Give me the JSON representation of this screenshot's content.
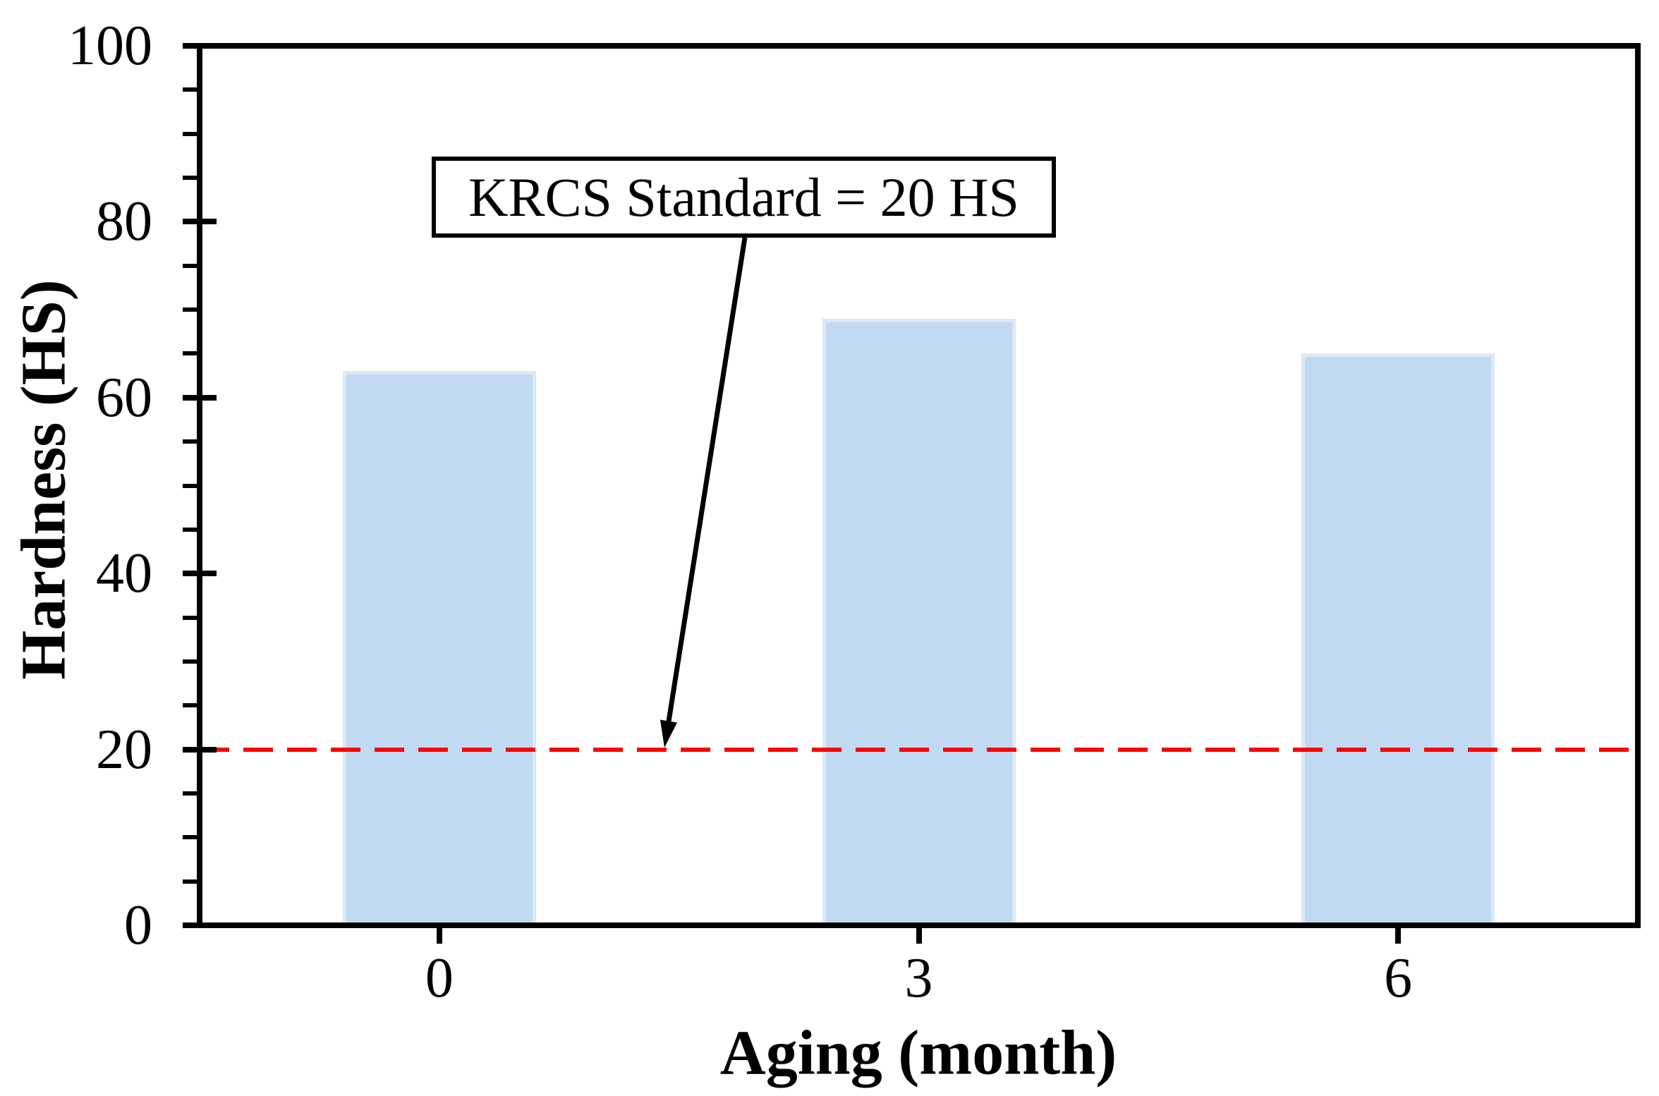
{
  "figure": {
    "background_color": "#FFFFFF",
    "axis_color": "#000000"
  },
  "chart_data": {
    "type": "bar",
    "title": "",
    "categories": [
      "0",
      "3",
      "6"
    ],
    "values": [
      63,
      69,
      65
    ],
    "xlabel": "Aging (month)",
    "ylabel": "Hardness (HS)",
    "ylim": [
      0,
      100
    ],
    "yticks": [
      0,
      20,
      40,
      60,
      80,
      100
    ],
    "ytick_major_step": 20,
    "ytick_minor_step": 5,
    "grid": false,
    "legend": "none",
    "bar_fill_color": "#C1D9F1",
    "bar_border_color": "#DCE8F6",
    "reference_line": {
      "value": 20,
      "color": "#FF0000",
      "style": "dashed"
    }
  },
  "annotation": {
    "label": "KRCS Standard = 20 HS",
    "points_to_value": "20",
    "box_border_color": "#000000",
    "arrow_color": "#000000"
  }
}
